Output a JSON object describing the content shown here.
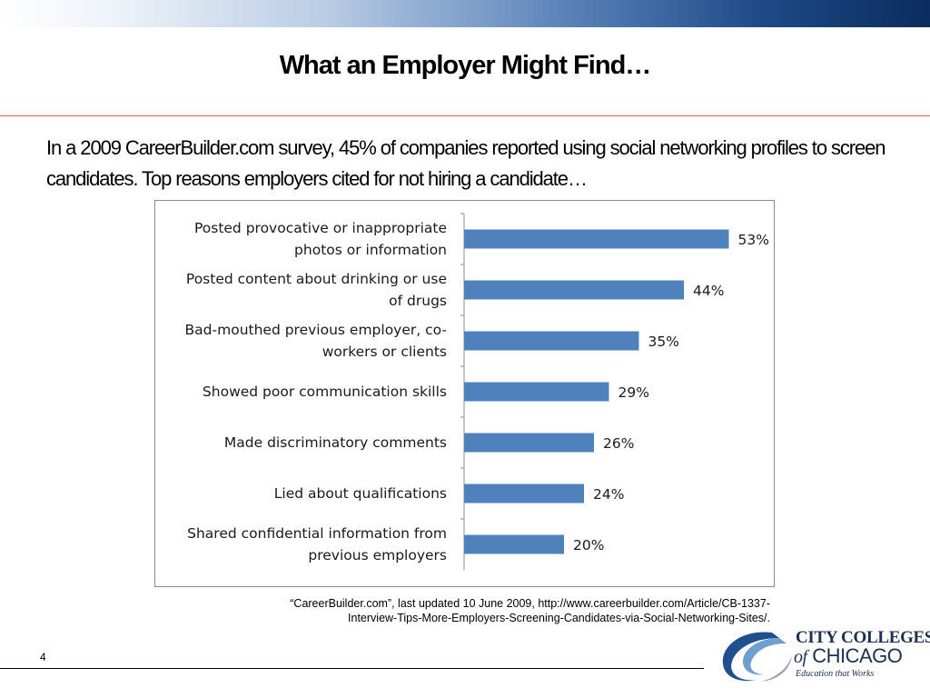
{
  "slide": {
    "title": "What an Employer Might Find…",
    "intro": "In a 2009 CareerBuilder.com survey, 45% of companies reported using social networking profiles to screen candidates. Top reasons employers cited for not hiring a candidate…",
    "source": "“CareerBuilder.com”, last updated 10 June 2009, http://www.careerbuilder.com/Article/CB-1337-Interview-Tips-More-Employers-Screening-Candidates-via-Social-Networking-Sites/.",
    "page_number": "4"
  },
  "logo": {
    "line1": "CITY COLLEGES",
    "line2_of": "of",
    "line2_city": "CHICAGO",
    "tagline": "Education that Works"
  },
  "colors": {
    "bar": "#4f81bd",
    "title_rule": "#d9534f",
    "logo_navy": "#1d2f55"
  },
  "chart_data": {
    "type": "bar",
    "orientation": "horizontal",
    "categories": [
      [
        "Posted provocative or inappropriate",
        "photos or information"
      ],
      [
        "Posted content about drinking or use",
        "of drugs"
      ],
      [
        "Bad-mouthed previous employer, co-",
        "workers or clients"
      ],
      [
        "Showed poor communication skills"
      ],
      [
        "Made discriminatory comments"
      ],
      [
        "Lied about qualifications"
      ],
      [
        "Shared confidential information from",
        "previous employers"
      ]
    ],
    "values": [
      53,
      44,
      35,
      29,
      26,
      24,
      20
    ],
    "value_labels": [
      "53%",
      "44%",
      "35%",
      "29%",
      "26%",
      "24%",
      "20%"
    ],
    "unit": "%",
    "xlim": [
      0,
      60
    ],
    "grid": false,
    "legend": "none"
  }
}
